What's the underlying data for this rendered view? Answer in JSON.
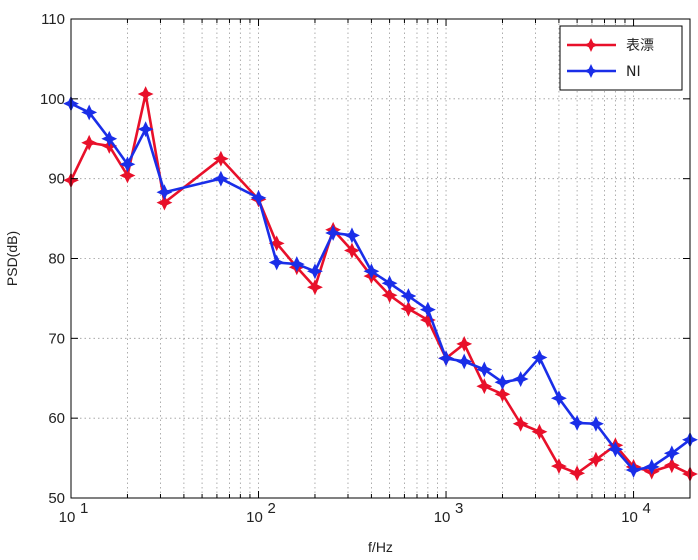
{
  "chart_data": {
    "type": "line",
    "xscale": "log",
    "xlim": [
      10,
      20000
    ],
    "ylim": [
      50,
      110
    ],
    "xlabel": "f/Hz",
    "ylabel": "PSD(dB)",
    "grid": true,
    "legend_position": "top-right",
    "x_ticks": [
      10,
      100,
      1000,
      10000
    ],
    "x_tick_labels": [
      {
        "base": "10",
        "exp": "1"
      },
      {
        "base": "10",
        "exp": "2"
      },
      {
        "base": "10",
        "exp": "3"
      },
      {
        "base": "10",
        "exp": "4"
      }
    ],
    "y_ticks": [
      50,
      60,
      70,
      80,
      90,
      100,
      110
    ],
    "y_tick_labels": [
      "50",
      "60",
      "70",
      "80",
      "90",
      "100",
      "110"
    ],
    "series": [
      {
        "name": "表漂",
        "color": "#e8102a",
        "x": [
          10,
          12.5,
          16,
          20,
          25,
          31.5,
          63,
          100,
          125,
          160,
          200,
          250,
          315,
          400,
          500,
          630,
          800,
          1000,
          1250,
          1600,
          2000,
          2500,
          3150,
          4000,
          5000,
          6300,
          8000,
          10000,
          12500,
          16000,
          20000
        ],
        "values": [
          89.8,
          94.5,
          94.1,
          90.4,
          100.6,
          87.0,
          92.5,
          87.4,
          81.9,
          78.9,
          76.4,
          83.6,
          81.0,
          77.8,
          75.4,
          73.7,
          72.3,
          67.5,
          69.3,
          64.0,
          63.0,
          59.3,
          58.3,
          54.0,
          53.1,
          54.8,
          56.6,
          53.9,
          53.3,
          54.1,
          53.0
        ]
      },
      {
        "name": "NI",
        "color": "#1a2ee8",
        "x": [
          10,
          12.5,
          16,
          20,
          25,
          31.5,
          63,
          100,
          125,
          160,
          200,
          250,
          315,
          400,
          500,
          630,
          800,
          1000,
          1250,
          1600,
          2000,
          2500,
          3150,
          4000,
          5000,
          6300,
          8000,
          10000,
          12500,
          16000,
          20000
        ],
        "values": [
          99.4,
          98.3,
          95.0,
          91.8,
          96.2,
          88.3,
          90.0,
          87.6,
          79.5,
          79.3,
          78.4,
          83.2,
          82.9,
          78.4,
          76.9,
          75.3,
          73.6,
          67.5,
          67.1,
          66.1,
          64.5,
          64.9,
          67.6,
          62.5,
          59.4,
          59.3,
          56.1,
          53.5,
          53.9,
          55.6,
          57.3
        ]
      }
    ]
  }
}
